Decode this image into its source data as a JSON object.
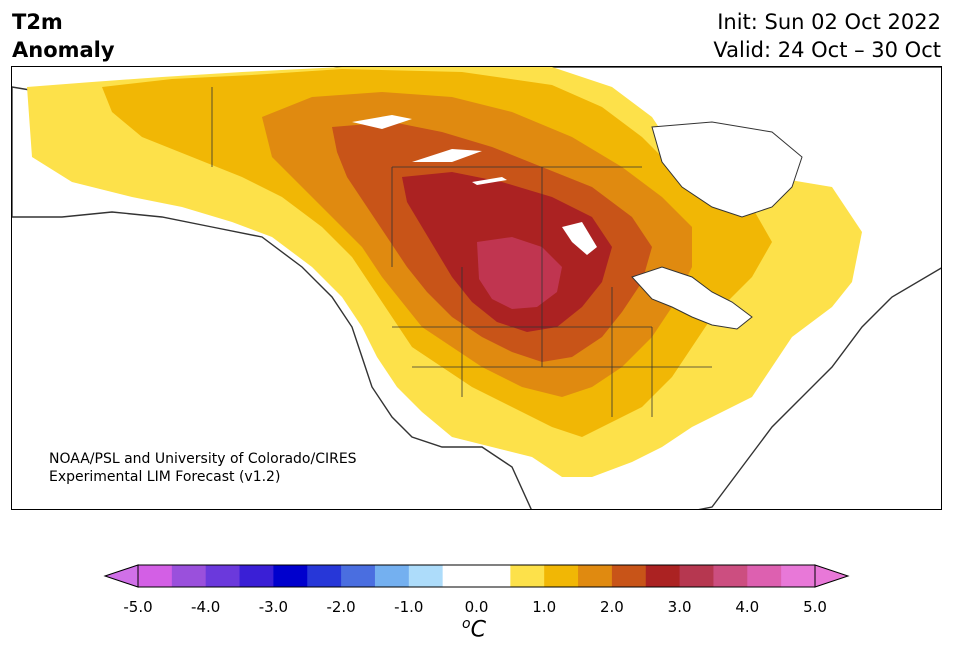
{
  "title": {
    "line1": "T2m",
    "line2": "Anomaly"
  },
  "info": {
    "init": "Init: Sun 02 Oct 2022",
    "valid": "Valid: 24 Oct – 30 Oct"
  },
  "credit": {
    "line1": "NOAA/PSL and University of Colorado/CIRES",
    "line2": "Experimental LIM Forecast (v1.2)"
  },
  "colorbar": {
    "unit_base": "C",
    "unit_sup": "o",
    "ticks": [
      "-5.0",
      "-4.0",
      "-3.0",
      "-2.0",
      "-1.0",
      "0.0",
      "1.0",
      "2.0",
      "3.0",
      "4.0",
      "5.0"
    ],
    "colors": [
      "#d35fe5",
      "#9a50dc",
      "#6b39dc",
      "#3a1fd6",
      "#0000cd",
      "#2737d8",
      "#4a6ee0",
      "#74b0f0",
      "#addcfa",
      "#ffffff",
      "#ffffff",
      "#fde14a",
      "#f1b705",
      "#e08a10",
      "#c85418",
      "#ab2222",
      "#b63750",
      "#cc4e80",
      "#dd60b0",
      "#e878d8"
    ],
    "low_extend": "#d070e8",
    "high_extend": "#e878d8"
  },
  "map_colors": {
    "ocean": "#ffffff",
    "c1": "#fde14a",
    "c2": "#f1b705",
    "c3": "#e08a10",
    "c4": "#c85418",
    "c5": "#ab2222",
    "c6": "#c03550",
    "lake": "#ffffff",
    "border": "#333333"
  }
}
